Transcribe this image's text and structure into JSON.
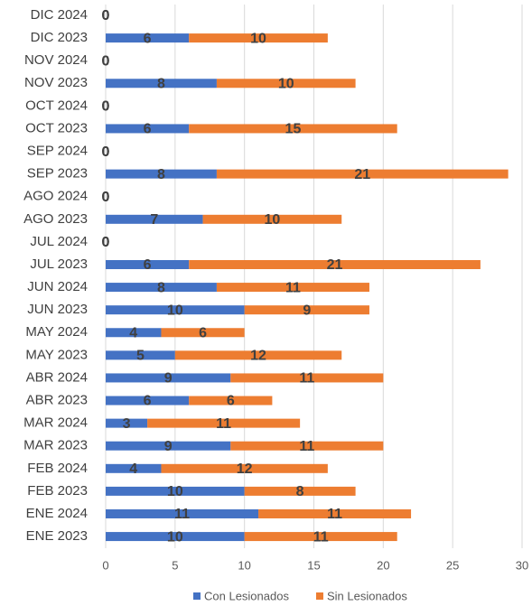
{
  "chart_data": {
    "type": "stacked_barh",
    "categories": [
      "DIC 2024",
      "DIC 2023",
      "NOV 2024",
      "NOV 2023",
      "OCT 2024",
      "OCT 2023",
      "SEP 2024",
      "SEP 2023",
      "AGO 2024",
      "AGO 2023",
      "JUL 2024",
      "JUL 2023",
      "JUN 2024",
      "JUN 2023",
      "MAY 2024",
      "MAY 2023",
      "ABR 2024",
      "ABR 2023",
      "MAR 2024",
      "MAR 2023",
      "FEB 2024",
      "FEB 2023",
      "ENE 2024",
      "ENE 2023"
    ],
    "series": [
      {
        "name": "Con Lesionados",
        "color": "#4472c4",
        "values": [
          0,
          6,
          0,
          8,
          0,
          6,
          0,
          8,
          0,
          7,
          0,
          6,
          8,
          10,
          4,
          5,
          9,
          6,
          3,
          9,
          4,
          10,
          11,
          10
        ]
      },
      {
        "name": "Sin Lesionados",
        "color": "#ed7d31",
        "values": [
          0,
          10,
          0,
          10,
          0,
          15,
          0,
          21,
          0,
          10,
          0,
          21,
          11,
          9,
          6,
          12,
          11,
          6,
          11,
          11,
          12,
          8,
          11,
          11
        ]
      }
    ],
    "xlim": [
      0,
      30
    ],
    "xticks": [
      0,
      5,
      10,
      15,
      20,
      25,
      30
    ],
    "grid": true,
    "legend": "bottom"
  }
}
